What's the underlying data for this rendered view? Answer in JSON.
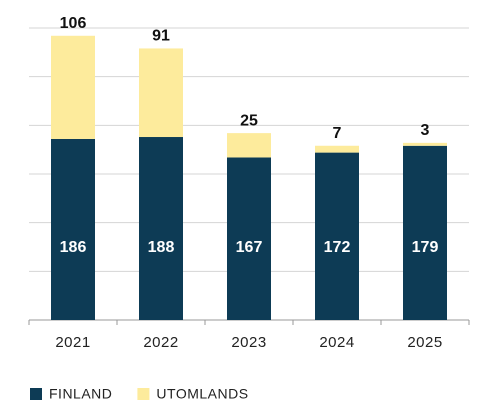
{
  "chart_data": {
    "type": "stacked-bar",
    "categories": [
      "2021",
      "2022",
      "2023",
      "2024",
      "2025"
    ],
    "series": [
      {
        "name": "FINLAND",
        "color": "#0d3b55",
        "values": [
          186,
          188,
          167,
          172,
          179
        ]
      },
      {
        "name": "UTOMLANDS",
        "color": "#fdeb9c",
        "values": [
          106,
          91,
          25,
          7,
          3
        ]
      }
    ],
    "ylim": [
      0,
      300
    ],
    "yticks": [
      0,
      50,
      100,
      150,
      200,
      250,
      300
    ],
    "grid": true,
    "legend": "bottom-left"
  }
}
